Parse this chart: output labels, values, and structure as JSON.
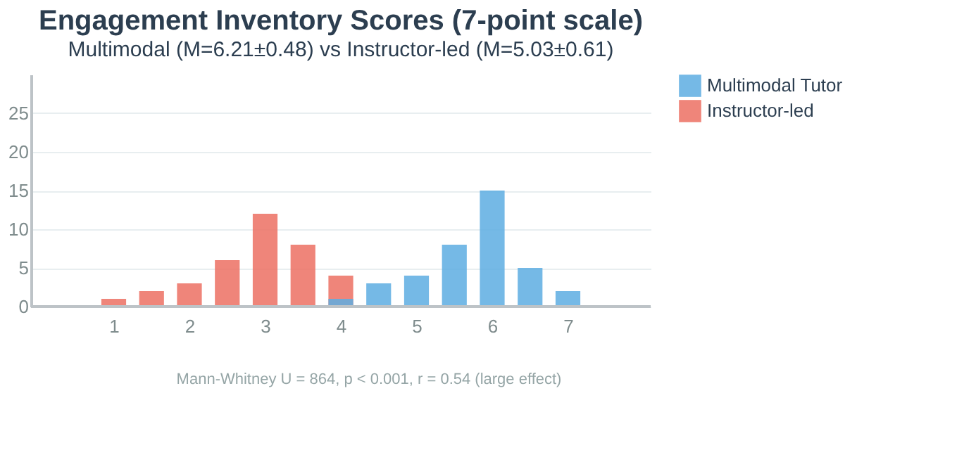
{
  "chart_data": {
    "type": "bar",
    "title": "Engagement Inventory Scores (7-point scale)",
    "subtitle": "Multimodal (M=6.21±0.48) vs Instructor-led (M=5.03±0.61)",
    "series": [
      {
        "name": "Multimodal Tutor",
        "color": "#5dade2",
        "x": [
          4,
          4.5,
          5,
          5.5,
          6,
          6.5,
          7
        ],
        "values": [
          1,
          3,
          4,
          8,
          15,
          5,
          2
        ]
      },
      {
        "name": "Instructor-led",
        "color": "#ec7063",
        "x": [
          1,
          1.5,
          2,
          2.5,
          3,
          3.5,
          4
        ],
        "values": [
          1,
          2,
          3,
          6,
          12,
          8,
          4
        ]
      }
    ],
    "xlim": [
      0,
      8
    ],
    "xticks": [
      1,
      2,
      3,
      4,
      5,
      6,
      7
    ],
    "ylim": [
      0,
      30
    ],
    "yticks": [
      0,
      5,
      10,
      15,
      20,
      25
    ],
    "grid": "y",
    "legend": "top right",
    "annotations": [
      "Mann-Whitney U = 864, p < 0.001, r = 0.54 (large effect)"
    ]
  }
}
